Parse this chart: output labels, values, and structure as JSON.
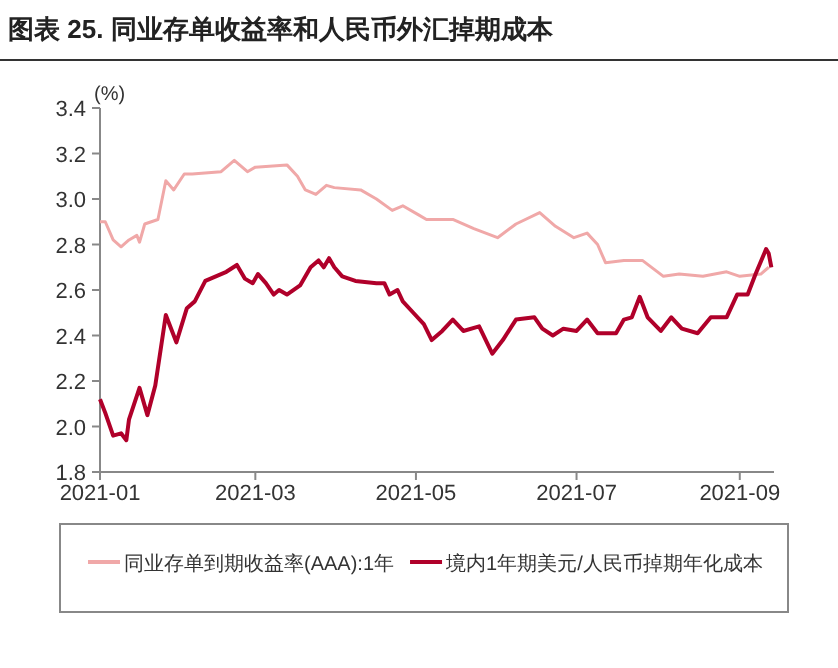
{
  "chart_data": {
    "type": "line",
    "title": "图表 25. 同业存单收益率和人民币外汇掉期成本",
    "ylabel": "(%)",
    "legend": "bottom",
    "grid": false,
    "xlim": [
      "2021-01-01",
      "2021-09-14"
    ],
    "xticks": [
      {
        "value": "2021-01-01",
        "label": "2021-01"
      },
      {
        "value": "2021-03-01",
        "label": "2021-03"
      },
      {
        "value": "2021-05-01",
        "label": "2021-05"
      },
      {
        "value": "2021-07-01",
        "label": "2021-07"
      },
      {
        "value": "2021-09-01",
        "label": "2021-09"
      }
    ],
    "ylim": [
      1.8,
      3.4
    ],
    "yticks": [
      {
        "value": 1.8,
        "label": "1.8"
      },
      {
        "value": 2,
        "label": "2.0"
      },
      {
        "value": 2.2,
        "label": "2.2"
      },
      {
        "value": 2.4,
        "label": "2.4"
      },
      {
        "value": 2.6,
        "label": "2.6"
      },
      {
        "value": 2.8,
        "label": "2.8"
      },
      {
        "value": 3,
        "label": "3.0"
      },
      {
        "value": 3.2,
        "label": "3.2"
      },
      {
        "value": 3.4,
        "label": "3.4"
      }
    ],
    "series": [
      {
        "name": "同业存单到期收益率(AAA):1年",
        "color": "#f0a8a8",
        "x": [
          "2021-01-01",
          "2021-01-03",
          "2021-01-06",
          "2021-01-09",
          "2021-01-12",
          "2021-01-15",
          "2021-01-16",
          "2021-01-18",
          "2021-01-23",
          "2021-01-26",
          "2021-01-29",
          "2021-02-02",
          "2021-02-05",
          "2021-02-16",
          "2021-02-19",
          "2021-02-21",
          "2021-02-26",
          "2021-03-01",
          "2021-03-13",
          "2021-03-17",
          "2021-03-20",
          "2021-03-24",
          "2021-03-28",
          "2021-03-31",
          "2021-04-10",
          "2021-04-16",
          "2021-04-22",
          "2021-04-26",
          "2021-05-02",
          "2021-05-05",
          "2021-05-15",
          "2021-05-23",
          "2021-06-01",
          "2021-06-08",
          "2021-06-17",
          "2021-06-23",
          "2021-06-30",
          "2021-07-05",
          "2021-07-09",
          "2021-07-12",
          "2021-07-19",
          "2021-07-26",
          "2021-08-03",
          "2021-08-09",
          "2021-08-18",
          "2021-08-27",
          "2021-09-01",
          "2021-09-09",
          "2021-09-12"
        ],
        "values": [
          2.9,
          2.9,
          2.82,
          2.79,
          2.82,
          2.84,
          2.81,
          2.89,
          2.91,
          3.08,
          3.04,
          3.11,
          3.11,
          3.12,
          3.15,
          3.17,
          3.12,
          3.14,
          3.15,
          3.1,
          3.04,
          3.02,
          3.06,
          3.05,
          3.04,
          3.0,
          2.95,
          2.97,
          2.93,
          2.91,
          2.91,
          2.87,
          2.83,
          2.89,
          2.94,
          2.88,
          2.83,
          2.85,
          2.8,
          2.72,
          2.73,
          2.73,
          2.66,
          2.67,
          2.66,
          2.68,
          2.66,
          2.67,
          2.7
        ]
      },
      {
        "name": "境内1年期美元/人民币掉期年化成本",
        "color": "#b0002a",
        "x": [
          "2021-01-01",
          "2021-01-03",
          "2021-01-06",
          "2021-01-09",
          "2021-01-11",
          "2021-01-12",
          "2021-01-16",
          "2021-01-19",
          "2021-01-22",
          "2021-01-26",
          "2021-01-30",
          "2021-02-03",
          "2021-02-06",
          "2021-02-10",
          "2021-02-18",
          "2021-02-22",
          "2021-02-25",
          "2021-02-28",
          "2021-03-02",
          "2021-03-05",
          "2021-03-08",
          "2021-03-10",
          "2021-03-13",
          "2021-03-18",
          "2021-03-22",
          "2021-03-25",
          "2021-03-27",
          "2021-03-29",
          "2021-03-31",
          "2021-04-03",
          "2021-04-08",
          "2021-04-16",
          "2021-04-19",
          "2021-04-21",
          "2021-04-24",
          "2021-04-26",
          "2021-04-30",
          "2021-05-04",
          "2021-05-07",
          "2021-05-11",
          "2021-05-15",
          "2021-05-19",
          "2021-05-25",
          "2021-05-30",
          "2021-06-03",
          "2021-06-08",
          "2021-06-15",
          "2021-06-18",
          "2021-06-22",
          "2021-06-26",
          "2021-07-01",
          "2021-07-05",
          "2021-07-09",
          "2021-07-16",
          "2021-07-19",
          "2021-07-22",
          "2021-07-25",
          "2021-07-28",
          "2021-08-02",
          "2021-08-06",
          "2021-08-10",
          "2021-08-16",
          "2021-08-21",
          "2021-08-27",
          "2021-08-31",
          "2021-09-04",
          "2021-09-07",
          "2021-09-11",
          "2021-09-12",
          "2021-09-13"
        ],
        "values": [
          2.12,
          2.06,
          1.96,
          1.97,
          1.94,
          2.03,
          2.17,
          2.05,
          2.18,
          2.49,
          2.37,
          2.52,
          2.55,
          2.64,
          2.68,
          2.71,
          2.65,
          2.63,
          2.67,
          2.63,
          2.58,
          2.6,
          2.58,
          2.62,
          2.7,
          2.73,
          2.7,
          2.74,
          2.7,
          2.66,
          2.64,
          2.63,
          2.63,
          2.58,
          2.6,
          2.55,
          2.5,
          2.45,
          2.38,
          2.42,
          2.47,
          2.42,
          2.44,
          2.32,
          2.38,
          2.47,
          2.48,
          2.43,
          2.4,
          2.43,
          2.42,
          2.47,
          2.41,
          2.41,
          2.47,
          2.48,
          2.57,
          2.48,
          2.42,
          2.48,
          2.43,
          2.41,
          2.48,
          2.48,
          2.58,
          2.58,
          2.67,
          2.78,
          2.76,
          2.7
        ]
      }
    ]
  }
}
